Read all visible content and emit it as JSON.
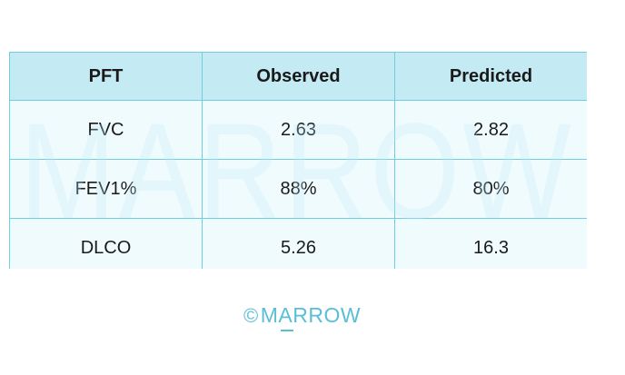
{
  "table": {
    "headers": [
      "PFT",
      "Observed",
      "Predicted"
    ],
    "rows": [
      [
        "FVC",
        "2.63",
        "2.82"
      ],
      [
        "FEV1%",
        "88%",
        "80%"
      ],
      [
        "DLCO",
        "5.26",
        "16.3"
      ]
    ]
  },
  "watermark": {
    "text": "MARROW"
  },
  "footer": {
    "copyright_symbol": "©",
    "brand": "MARROW"
  },
  "colors": {
    "header_bg": "#c4ebf4",
    "border": "#6fcfe0",
    "brand": "#59bfd6"
  }
}
